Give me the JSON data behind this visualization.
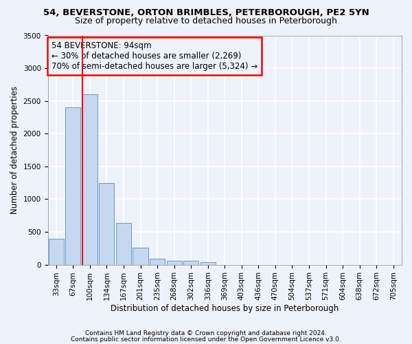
{
  "title1": "54, BEVERSTONE, ORTON BRIMBLES, PETERBOROUGH, PE2 5YN",
  "title2": "Size of property relative to detached houses in Peterborough",
  "xlabel": "Distribution of detached houses by size in Peterborough",
  "ylabel": "Number of detached properties",
  "footnote1": "Contains HM Land Registry data © Crown copyright and database right 2024.",
  "footnote2": "Contains public sector information licensed under the Open Government Licence v3.0.",
  "categories": [
    "33sqm",
    "67sqm",
    "100sqm",
    "134sqm",
    "167sqm",
    "201sqm",
    "235sqm",
    "268sqm",
    "302sqm",
    "336sqm",
    "369sqm",
    "403sqm",
    "436sqm",
    "470sqm",
    "504sqm",
    "537sqm",
    "571sqm",
    "604sqm",
    "638sqm",
    "672sqm",
    "705sqm"
  ],
  "bar_values": [
    390,
    2400,
    2600,
    1250,
    640,
    255,
    90,
    60,
    55,
    40,
    0,
    0,
    0,
    0,
    0,
    0,
    0,
    0,
    0,
    0,
    0
  ],
  "bar_color": "#c5d8ef",
  "bar_edgecolor": "#6699cc",
  "annotation_title": "54 BEVERSTONE: 94sqm",
  "annotation_line1": "← 30% of detached houses are smaller (2,269)",
  "annotation_line2": "70% of semi-detached houses are larger (5,324) →",
  "ylim": [
    0,
    3500
  ],
  "yticks": [
    0,
    500,
    1000,
    1500,
    2000,
    2500,
    3000,
    3500
  ],
  "background_color": "#eef2fa",
  "grid_color": "#ffffff",
  "title1_fontsize": 9.5,
  "title2_fontsize": 9,
  "axis_fontsize": 8.5,
  "tick_fontsize": 7.5,
  "annot_fontsize": 8.5,
  "footnote_fontsize": 6.5
}
